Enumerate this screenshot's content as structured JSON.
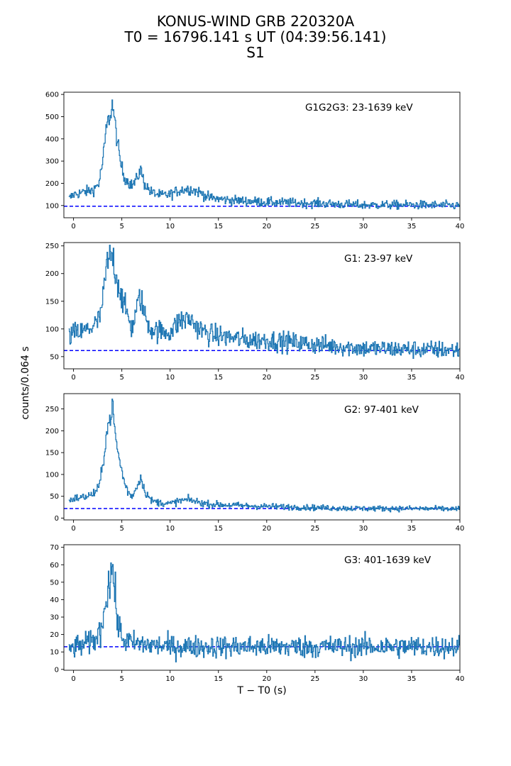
{
  "figure": {
    "title_lines": [
      "KONUS-WIND GRB 220320A",
      "T0 = 16796.141 s UT (04:39:56.141)",
      "S1"
    ],
    "xlabel": "T − T0 (s)",
    "ylabel": "counts/0.064 s"
  },
  "chart_data": [
    {
      "type": "line",
      "annotation": "G1G2G3: 23-1639 keV",
      "xlim": [
        -1,
        40
      ],
      "ylim": [
        45,
        610
      ],
      "xticks": [
        0,
        5,
        10,
        15,
        20,
        25,
        30,
        35,
        40
      ],
      "yticks": [
        100,
        200,
        300,
        400,
        500,
        600
      ],
      "background": 97,
      "line_color": "#1f77b4",
      "background_color": "#0000ff",
      "series_points": [
        [
          -0.5,
          130
        ],
        [
          0,
          150
        ],
        [
          1,
          160
        ],
        [
          2,
          170
        ],
        [
          2.6,
          200
        ],
        [
          3,
          300
        ],
        [
          3.4,
          460
        ],
        [
          3.8,
          510
        ],
        [
          4,
          560
        ],
        [
          4.4,
          420
        ],
        [
          4.8,
          300
        ],
        [
          5.2,
          230
        ],
        [
          5.6,
          210
        ],
        [
          6,
          190
        ],
        [
          6.5,
          215
        ],
        [
          6.9,
          265
        ],
        [
          7.3,
          200
        ],
        [
          8,
          160
        ],
        [
          9,
          145
        ],
        [
          10,
          150
        ],
        [
          11,
          170
        ],
        [
          12,
          175
        ],
        [
          13,
          160
        ],
        [
          14,
          135
        ],
        [
          16,
          125
        ],
        [
          18,
          120
        ],
        [
          20,
          115
        ],
        [
          25,
          110
        ],
        [
          30,
          102
        ],
        [
          35,
          103
        ],
        [
          40,
          100
        ]
      ],
      "noise": 12
    },
    {
      "type": "line",
      "annotation": "G1: 23-97 keV",
      "xlim": [
        -1,
        40
      ],
      "ylim": [
        28,
        256
      ],
      "xticks": [
        0,
        5,
        10,
        15,
        20,
        25,
        30,
        35,
        40
      ],
      "yticks": [
        50,
        100,
        150,
        200,
        250
      ],
      "background": 61,
      "line_color": "#1f77b4",
      "background_color": "#0000ff",
      "series_points": [
        [
          -0.5,
          85
        ],
        [
          0,
          92
        ],
        [
          1,
          95
        ],
        [
          2,
          105
        ],
        [
          2.6,
          115
        ],
        [
          3,
          150
        ],
        [
          3.4,
          215
        ],
        [
          3.8,
          230
        ],
        [
          4,
          235
        ],
        [
          4.4,
          195
        ],
        [
          4.8,
          170
        ],
        [
          5.2,
          140
        ],
        [
          5.6,
          125
        ],
        [
          6,
          100
        ],
        [
          6.5,
          135
        ],
        [
          6.9,
          160
        ],
        [
          7.3,
          125
        ],
        [
          8,
          100
        ],
        [
          9,
          95
        ],
        [
          10,
          95
        ],
        [
          11,
          115
        ],
        [
          12,
          118
        ],
        [
          13,
          100
        ],
        [
          14,
          90
        ],
        [
          16,
          85
        ],
        [
          18,
          80
        ],
        [
          20,
          80
        ],
        [
          25,
          72
        ],
        [
          30,
          65
        ],
        [
          35,
          63
        ],
        [
          40,
          62
        ]
      ],
      "noise": 10
    },
    {
      "type": "line",
      "annotation": "G2: 97-401 keV",
      "xlim": [
        -1,
        40
      ],
      "ylim": [
        -4,
        285
      ],
      "xticks": [
        0,
        5,
        10,
        15,
        20,
        25,
        30,
        35,
        40
      ],
      "yticks": [
        0,
        50,
        100,
        150,
        200,
        250
      ],
      "background": 22,
      "line_color": "#1f77b4",
      "background_color": "#0000ff",
      "series_points": [
        [
          -0.5,
          40
        ],
        [
          0,
          45
        ],
        [
          1,
          48
        ],
        [
          2,
          55
        ],
        [
          2.6,
          70
        ],
        [
          3,
          120
        ],
        [
          3.4,
          200
        ],
        [
          3.8,
          230
        ],
        [
          4,
          260
        ],
        [
          4.4,
          170
        ],
        [
          4.8,
          125
        ],
        [
          5.2,
          85
        ],
        [
          5.6,
          60
        ],
        [
          6,
          50
        ],
        [
          6.5,
          70
        ],
        [
          6.9,
          95
        ],
        [
          7.3,
          65
        ],
        [
          8,
          40
        ],
        [
          9,
          35
        ],
        [
          10,
          33
        ],
        [
          11,
          40
        ],
        [
          12,
          42
        ],
        [
          13,
          36
        ],
        [
          14,
          32
        ],
        [
          16,
          30
        ],
        [
          18,
          28
        ],
        [
          20,
          27
        ],
        [
          25,
          24
        ],
        [
          30,
          22
        ],
        [
          35,
          22
        ],
        [
          40,
          21
        ]
      ],
      "noise": 4
    },
    {
      "type": "line",
      "annotation": "G3: 401-1639 keV",
      "xlim": [
        -1,
        40
      ],
      "ylim": [
        -0.5,
        71.5
      ],
      "xticks": [
        0,
        5,
        10,
        15,
        20,
        25,
        30,
        35,
        40
      ],
      "yticks": [
        0,
        10,
        20,
        30,
        40,
        50,
        60,
        70
      ],
      "background": 13,
      "line_color": "#1f77b4",
      "background_color": "#0000ff",
      "series_points": [
        [
          -0.5,
          12
        ],
        [
          1,
          14
        ],
        [
          2,
          16
        ],
        [
          2.6,
          20
        ],
        [
          3,
          28
        ],
        [
          3.4,
          45
        ],
        [
          3.8,
          52
        ],
        [
          4,
          60
        ],
        [
          4.3,
          40
        ],
        [
          4.6,
          25
        ],
        [
          5,
          18
        ],
        [
          6,
          15
        ],
        [
          8,
          14
        ],
        [
          10,
          13
        ],
        [
          15,
          13
        ],
        [
          20,
          13
        ],
        [
          25,
          13
        ],
        [
          30,
          13
        ],
        [
          35,
          13
        ],
        [
          40,
          13
        ]
      ],
      "noise": 4
    }
  ]
}
